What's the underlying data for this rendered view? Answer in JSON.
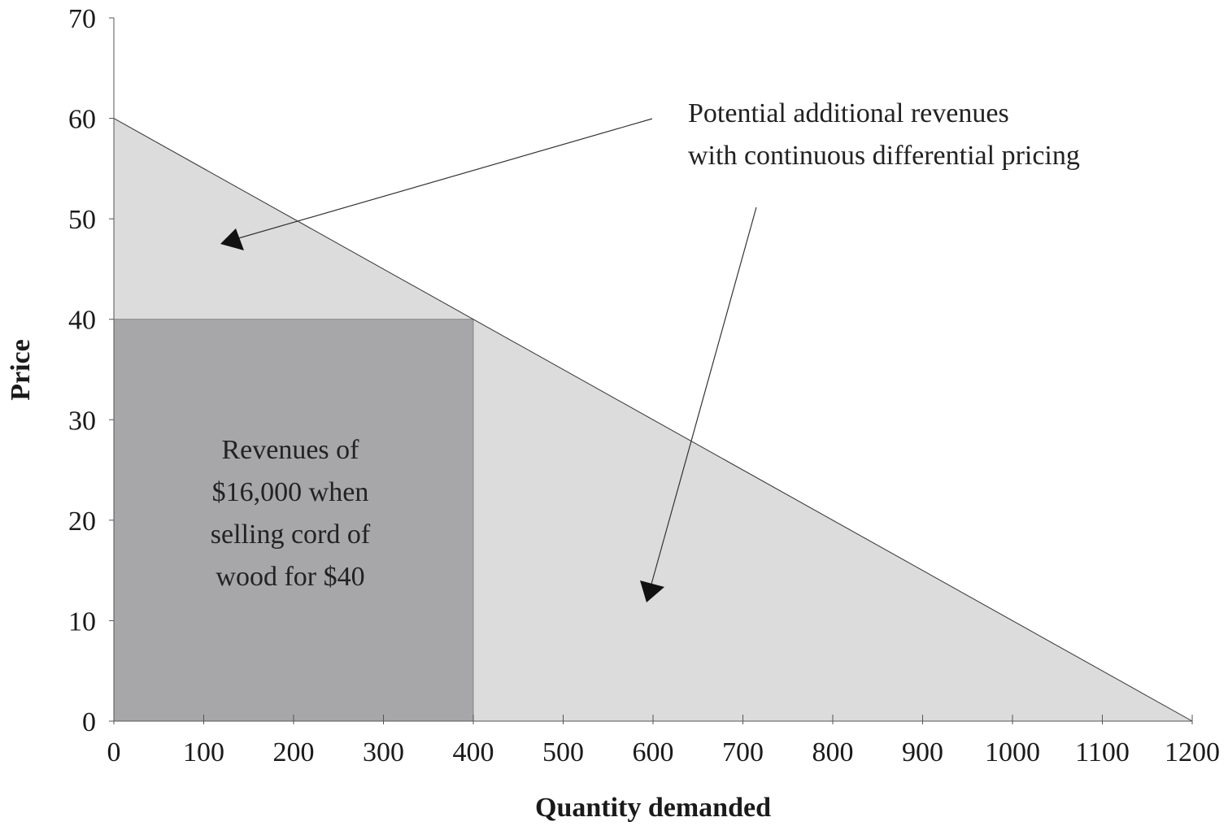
{
  "chart_data": {
    "type": "area",
    "xlabel": "Quantity demanded",
    "ylabel": "Price",
    "xlim": [
      0,
      1200
    ],
    "ylim": [
      0,
      70
    ],
    "x_ticks": [
      0,
      100,
      200,
      300,
      400,
      500,
      600,
      700,
      800,
      900,
      1000,
      1100,
      1200
    ],
    "y_ticks": [
      0,
      10,
      20,
      30,
      40,
      50,
      60,
      70
    ],
    "grid": false,
    "demand_line": {
      "x": [
        0,
        1200
      ],
      "y": [
        60,
        0
      ]
    },
    "revenue_rectangle": {
      "quantity": 400,
      "price": 40
    },
    "colors": {
      "potential_area": "#dcdcdc",
      "revenue_area": "#a7a7aa",
      "line": "#333333"
    },
    "annotations": [
      {
        "lines": [
          "Potential additional revenues",
          "with continuous differential pricing"
        ]
      },
      {
        "lines": [
          "Revenues of",
          "$16,000 when",
          "selling cord of",
          "wood for $40"
        ]
      }
    ]
  }
}
